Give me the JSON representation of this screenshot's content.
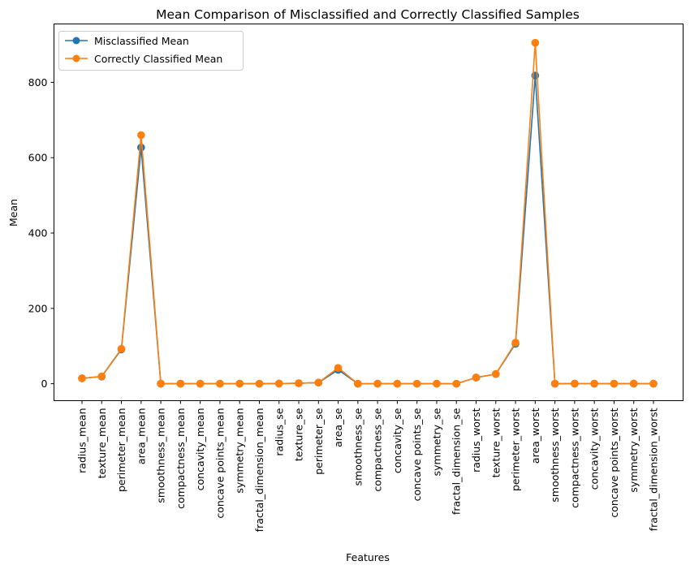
{
  "chart_data": {
    "type": "line",
    "title": "Mean Comparison of Misclassified and Correctly Classified Samples",
    "xlabel": "Features",
    "ylabel": "Mean",
    "ylim": [
      -45,
      955
    ],
    "yticks": [
      0,
      200,
      400,
      600,
      800
    ],
    "grid": false,
    "legend_position": "top-left",
    "categories": [
      "radius_mean",
      "texture_mean",
      "perimeter_mean",
      "area_mean",
      "smoothness_mean",
      "compactness_mean",
      "concavity_mean",
      "concave points_mean",
      "symmetry_mean",
      "fractal_dimension_mean",
      "radius_se",
      "texture_se",
      "perimeter_se",
      "area_se",
      "smoothness_se",
      "compactness_se",
      "concavity_se",
      "concave points_se",
      "symmetry_se",
      "fractal_dimension_se",
      "radius_worst",
      "texture_worst",
      "perimeter_worst",
      "area_worst",
      "smoothness_worst",
      "compactness_worst",
      "concavity_worst",
      "concave points_worst",
      "symmetry_worst",
      "fractal_dimension_worst"
    ],
    "series": [
      {
        "name": "Misclassified Mean",
        "color": "#1f77b4",
        "values": [
          14.5,
          19.0,
          91.0,
          627,
          0.1,
          0.1,
          0.1,
          0.05,
          0.18,
          0.06,
          0.4,
          1.2,
          2.9,
          37,
          0.007,
          0.025,
          0.03,
          0.012,
          0.02,
          0.004,
          16.2,
          25.6,
          106,
          818,
          0.13,
          0.25,
          0.27,
          0.11,
          0.29,
          0.08
        ]
      },
      {
        "name": "Correctly Classified Mean",
        "color": "#ff7f0e",
        "values": [
          14.2,
          19.5,
          92.5,
          660,
          0.1,
          0.1,
          0.09,
          0.05,
          0.18,
          0.06,
          0.42,
          1.2,
          3.0,
          42,
          0.007,
          0.026,
          0.032,
          0.012,
          0.02,
          0.004,
          16.5,
          25.9,
          109,
          905,
          0.13,
          0.25,
          0.27,
          0.11,
          0.29,
          0.08
        ]
      }
    ]
  }
}
